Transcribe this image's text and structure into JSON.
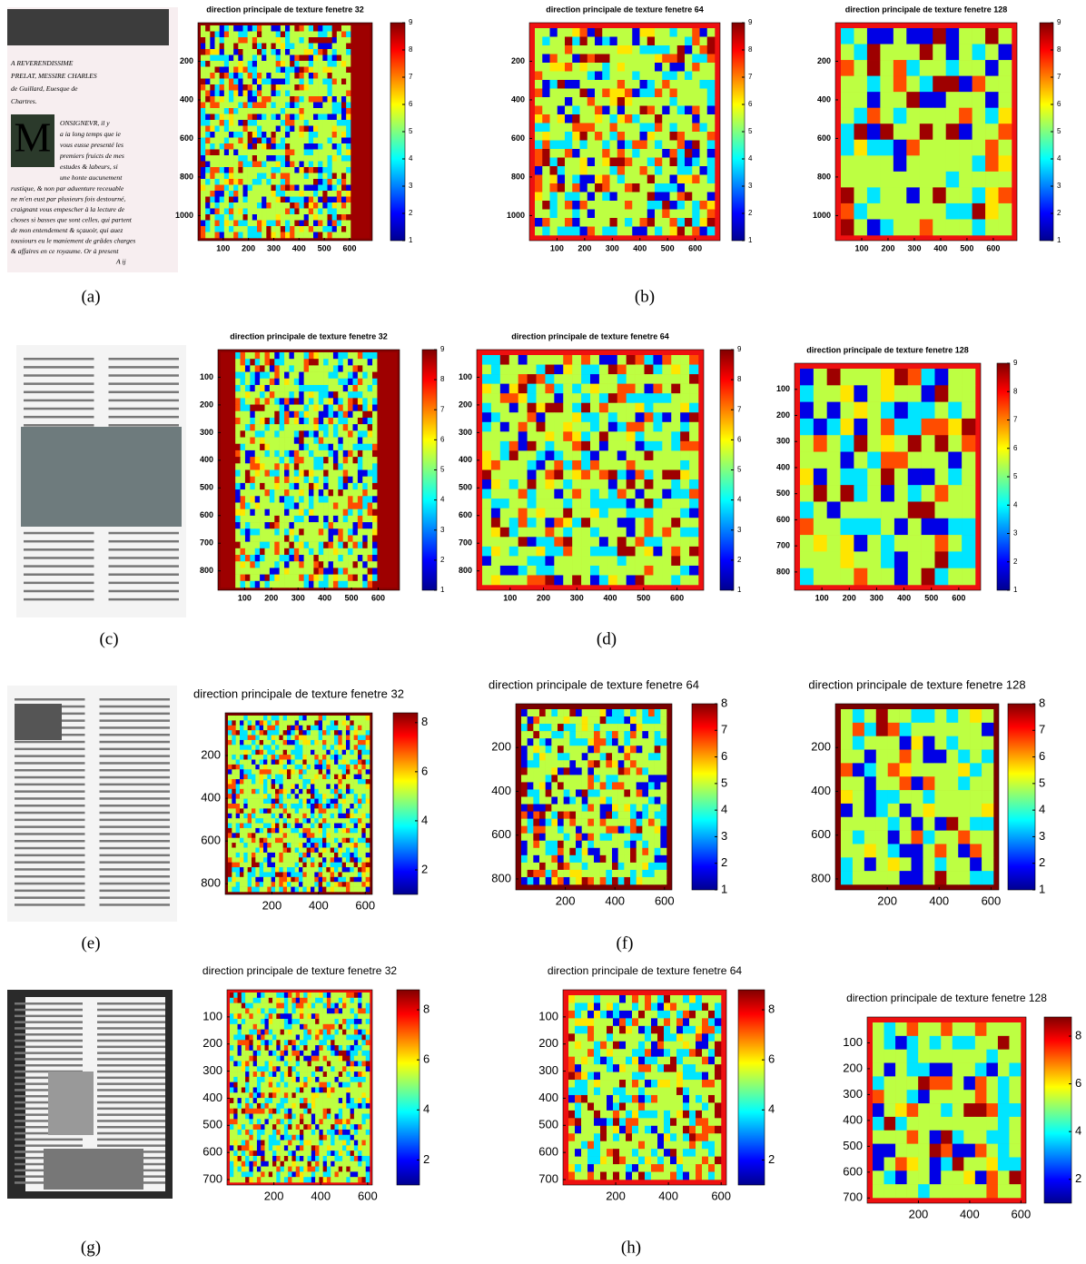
{
  "rows": [
    {
      "document": {
        "dropcap": "M",
        "lines": [
          "A REVERENDISSIME",
          "PRELAT, MESSIRE CHARLES",
          "de Guillard, Euesque de",
          "Chartres.",
          "ONSIGNEVR, il y",
          "a ia long temps que ie",
          "vous eusse presenté les",
          "premiers fruicts de mes",
          "estudes & labeurs, si",
          "une honte aucunement",
          "rustique, & non par aduenture receuable",
          "ne m'en eust par plusieurs fois destourné,",
          "craignant vous empescher à la lecture de",
          "choses si basses que sont celles, qui partent",
          "de mon entendement & sçauoir, qui auez",
          "tousiours eu le maniement de grãdes charges",
          "& affaires en ce royaume. Or à present",
          "A ij"
        ]
      },
      "captions": [
        "(a)",
        "(b)"
      ],
      "panels": [
        {
          "title": "direction principale de texture fenetre 32",
          "xlim": [
            0,
            690
          ],
          "ylim": [
            0,
            1130
          ],
          "xticks": [
            100,
            200,
            300,
            400,
            500,
            600
          ],
          "yticks": [
            200,
            400,
            600,
            800,
            1000
          ],
          "clim": [
            1,
            9
          ],
          "cticks": [
            1,
            2,
            3,
            4,
            5,
            6,
            7,
            8,
            9
          ]
        },
        {
          "title": "direction principale de texture fenetre 64",
          "xlim": [
            0,
            690
          ],
          "ylim": [
            0,
            1130
          ],
          "xticks": [
            100,
            200,
            300,
            400,
            500,
            600
          ],
          "yticks": [
            200,
            400,
            600,
            800,
            1000
          ],
          "clim": [
            1,
            9
          ],
          "cticks": [
            1,
            2,
            3,
            4,
            5,
            6,
            7,
            8,
            9
          ]
        },
        {
          "title": "direction principale de texture fenetre 128",
          "xlim": [
            0,
            690
          ],
          "ylim": [
            0,
            1130
          ],
          "xticks": [
            100,
            200,
            300,
            400,
            500,
            600
          ],
          "yticks": [
            200,
            400,
            600,
            800,
            1000
          ],
          "clim": [
            1,
            9
          ],
          "cticks": [
            1,
            2,
            3,
            4,
            5,
            6,
            7,
            8,
            9
          ]
        }
      ]
    },
    {
      "captions": [
        "(c)",
        "(d)"
      ],
      "panels": [
        {
          "title": "direction principale de texture fenetre 32",
          "xlim": [
            0,
            680
          ],
          "ylim": [
            0,
            870
          ],
          "xticks": [
            100,
            200,
            300,
            400,
            500,
            600
          ],
          "yticks": [
            100,
            200,
            300,
            400,
            500,
            600,
            700,
            800
          ],
          "clim": [
            1,
            9
          ],
          "cticks": [
            1,
            2,
            3,
            4,
            5,
            6,
            7,
            8,
            9
          ]
        },
        {
          "title": "direction principale de texture fenetre 64",
          "xlim": [
            0,
            680
          ],
          "ylim": [
            0,
            870
          ],
          "xticks": [
            100,
            200,
            300,
            400,
            500,
            600
          ],
          "yticks": [
            100,
            200,
            300,
            400,
            500,
            600,
            700,
            800
          ],
          "clim": [
            1,
            9
          ],
          "cticks": [
            1,
            2,
            3,
            4,
            5,
            6,
            7,
            8,
            9
          ]
        },
        {
          "title": "direction principale de texture fenetre 128",
          "xlim": [
            0,
            680
          ],
          "ylim": [
            0,
            870
          ],
          "xticks": [
            100,
            200,
            300,
            400,
            500,
            600
          ],
          "yticks": [
            100,
            200,
            300,
            400,
            500,
            600,
            700,
            800
          ],
          "clim": [
            1,
            9
          ],
          "cticks": [
            1,
            2,
            3,
            4,
            5,
            6,
            7,
            8,
            9
          ]
        }
      ]
    },
    {
      "captions": [
        "(e)",
        "(f)"
      ],
      "panels": [
        {
          "title": "direction principale de texture fenetre 32",
          "xlim": [
            0,
            630
          ],
          "ylim": [
            0,
            850
          ],
          "xticks": [
            200,
            400,
            600
          ],
          "yticks": [
            200,
            400,
            600,
            800
          ],
          "clim": [
            1,
            8.4
          ],
          "cticks": [
            2,
            4,
            6,
            8
          ]
        },
        {
          "title": "direction principale de texture fenetre 64",
          "xlim": [
            0,
            630
          ],
          "ylim": [
            0,
            850
          ],
          "xticks": [
            200,
            400,
            600
          ],
          "yticks": [
            200,
            400,
            600,
            800
          ],
          "clim": [
            1,
            8
          ],
          "cticks": [
            1,
            2,
            3,
            4,
            5,
            6,
            7,
            8
          ]
        },
        {
          "title": "direction principale de texture fenetre 128",
          "xlim": [
            0,
            630
          ],
          "ylim": [
            0,
            850
          ],
          "xticks": [
            200,
            400,
            600
          ],
          "yticks": [
            200,
            400,
            600,
            800
          ],
          "clim": [
            1,
            8
          ],
          "cticks": [
            1,
            2,
            3,
            4,
            5,
            6,
            7,
            8
          ]
        }
      ]
    },
    {
      "captions": [
        "(g)",
        "(h)"
      ],
      "panels": [
        {
          "title": "direction principale de texture fenetre 32",
          "xlim": [
            0,
            620
          ],
          "ylim": [
            0,
            720
          ],
          "xticks": [
            200,
            400,
            600
          ],
          "yticks": [
            100,
            200,
            300,
            400,
            500,
            600,
            700
          ],
          "clim": [
            1,
            8.8
          ],
          "cticks": [
            2,
            4,
            6,
            8
          ]
        },
        {
          "title": "direction principale de texture fenetre 64",
          "xlim": [
            0,
            620
          ],
          "ylim": [
            0,
            720
          ],
          "xticks": [
            200,
            400,
            600
          ],
          "yticks": [
            100,
            200,
            300,
            400,
            500,
            600,
            700
          ],
          "clim": [
            1,
            8.8
          ],
          "cticks": [
            2,
            4,
            6,
            8
          ]
        },
        {
          "title": "direction principale de texture fenetre 128",
          "xlim": [
            0,
            620
          ],
          "ylim": [
            0,
            720
          ],
          "xticks": [
            200,
            400,
            600
          ],
          "yticks": [
            100,
            200,
            300,
            400,
            500,
            600,
            700
          ],
          "clim": [
            1,
            8.8
          ],
          "cticks": [
            2,
            4,
            6,
            8
          ]
        }
      ]
    }
  ]
}
